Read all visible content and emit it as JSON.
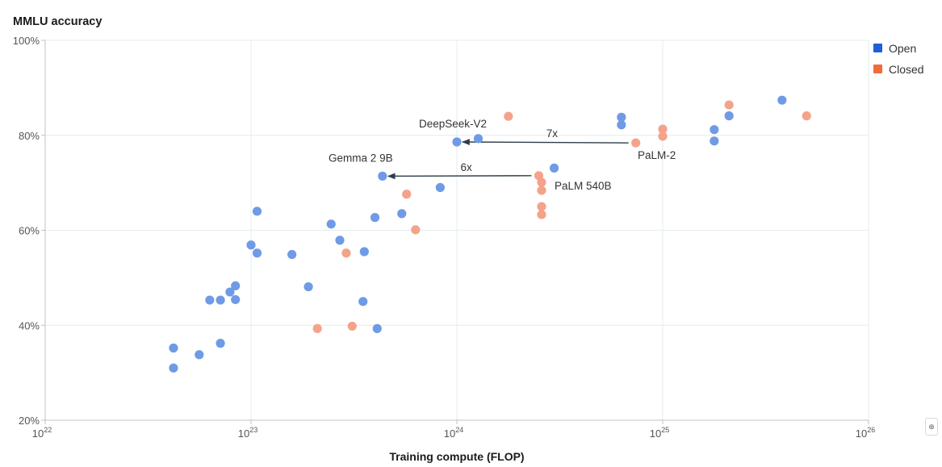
{
  "chart_data": {
    "type": "scatter",
    "title": "MMLU accuracy",
    "xlabel": "Training compute (FLOP)",
    "x_scale": "log",
    "xlim": [
      1e+22,
      1e+26
    ],
    "ylim": [
      20,
      100
    ],
    "x_ticks": [
      {
        "value": 1e+22,
        "base": "10",
        "exp": "22"
      },
      {
        "value": 1e+23,
        "base": "10",
        "exp": "23"
      },
      {
        "value": 1e+24,
        "base": "10",
        "exp": "24"
      },
      {
        "value": 1e+25,
        "base": "10",
        "exp": "25"
      },
      {
        "value": 1e+26,
        "base": "10",
        "exp": "26"
      }
    ],
    "y_ticks": [
      {
        "value": 20,
        "label": "20%"
      },
      {
        "value": 40,
        "label": "40%"
      },
      {
        "value": 60,
        "label": "60%"
      },
      {
        "value": 80,
        "label": "80%"
      },
      {
        "value": 100,
        "label": "100%"
      }
    ],
    "grid": true,
    "legend_position": "top-right",
    "series": [
      {
        "name": "Open",
        "color": "#1f5fd6",
        "point_color": "#6f9be6",
        "points": [
          [
            4.2e+22,
            35.2
          ],
          [
            4.2e+22,
            31.0
          ],
          [
            5.6e+22,
            33.8
          ],
          [
            6.3e+22,
            45.3
          ],
          [
            7.1e+22,
            36.2
          ],
          [
            7.1e+22,
            45.3
          ],
          [
            7.9e+22,
            47.0
          ],
          [
            8.4e+22,
            48.3
          ],
          [
            8.4e+22,
            45.4
          ],
          [
            1e+23,
            56.9
          ],
          [
            1.07e+23,
            64.0
          ],
          [
            1.07e+23,
            55.2
          ],
          [
            1.58e+23,
            54.9
          ],
          [
            1.9e+23,
            48.1
          ],
          [
            2.45e+23,
            61.3
          ],
          [
            2.7e+23,
            57.9
          ],
          [
            3.5e+23,
            45.0
          ],
          [
            3.55e+23,
            55.5
          ],
          [
            4e+23,
            62.7
          ],
          [
            4.1e+23,
            39.3
          ],
          [
            4.35e+23,
            71.4
          ],
          [
            5.4e+23,
            63.5
          ],
          [
            8.3e+23,
            69.0
          ],
          [
            1e+24,
            78.6
          ],
          [
            1.27e+24,
            79.3
          ],
          [
            2.97e+24,
            73.1
          ],
          [
            6.3e+24,
            83.8
          ],
          [
            6.3e+24,
            82.2
          ],
          [
            1.78e+25,
            78.8
          ],
          [
            1.78e+25,
            81.2
          ],
          [
            2.1e+25,
            84.1
          ],
          [
            3.8e+25,
            87.4
          ]
        ]
      },
      {
        "name": "Closed",
        "color": "#f06a3a",
        "point_color": "#f4a38a",
        "points": [
          [
            1.78e+24,
            84.0
          ],
          [
            5.7e+23,
            67.6
          ],
          [
            6.3e+23,
            60.1
          ],
          [
            2.9e+23,
            55.2
          ],
          [
            2.1e+23,
            39.3
          ],
          [
            3.1e+23,
            39.8
          ],
          [
            2.5e+24,
            71.5
          ],
          [
            2.58e+24,
            70.1
          ],
          [
            2.58e+24,
            68.4
          ],
          [
            2.58e+24,
            65.0
          ],
          [
            2.58e+24,
            63.3
          ],
          [
            7.4e+24,
            78.4
          ],
          [
            1e+25,
            81.3
          ],
          [
            1e+25,
            79.8
          ],
          [
            2.1e+25,
            86.4
          ],
          [
            5e+25,
            84.1
          ]
        ]
      }
    ],
    "annotations": [
      {
        "label": "DeepSeek-V2",
        "x": 1e+24,
        "y": 78.6
      },
      {
        "label": "Gemma 2 9B",
        "x": 4.35e+23,
        "y": 71.4
      },
      {
        "label": "PaLM-2",
        "x": 7.4e+24,
        "y": 78.4
      },
      {
        "label": "PaLM 540B",
        "x": 2.58e+24,
        "y": 70.1
      }
    ],
    "arrows": [
      {
        "label": "7x",
        "from": [
          7.4e+24,
          78.4
        ],
        "to": [
          1e+24,
          78.6
        ]
      },
      {
        "label": "6x",
        "from": [
          2.5e+24,
          71.5
        ],
        "to": [
          4.35e+23,
          71.4
        ]
      }
    ]
  }
}
